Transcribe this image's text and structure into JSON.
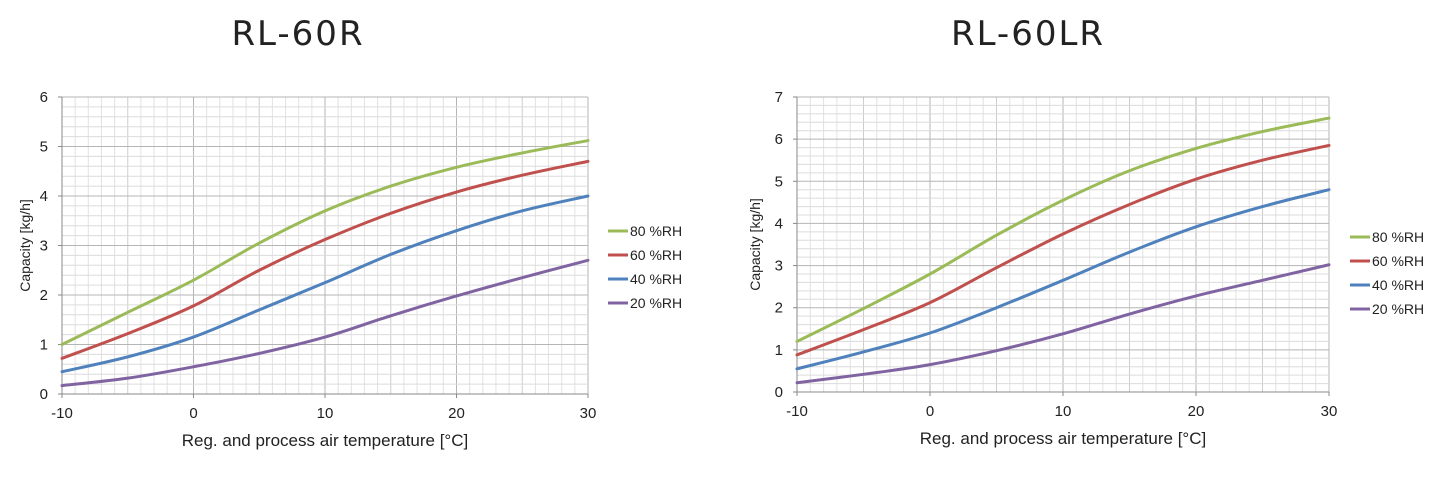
{
  "chart_data": [
    {
      "type": "line",
      "title": "RL-60R",
      "xlabel": "Reg. and process air temperature [°C]",
      "ylabel": "Capacity [kg/h]",
      "xlim": [
        -10,
        30
      ],
      "ylim": [
        0,
        6
      ],
      "xticks": [
        "-10",
        "0",
        "10",
        "20",
        "30"
      ],
      "yticks": [
        "0",
        "1",
        "2",
        "3",
        "4",
        "5",
        "6"
      ],
      "grid": true,
      "legend": "right",
      "series": [
        {
          "name": "80 %RH",
          "color": "#9bbb59",
          "x": [
            -10,
            -5,
            0,
            5,
            10,
            15,
            20,
            25,
            30
          ],
          "y": [
            1.0,
            1.65,
            2.3,
            3.05,
            3.7,
            4.2,
            4.58,
            4.87,
            5.12
          ]
        },
        {
          "name": "60 %RH",
          "color": "#c0504d",
          "x": [
            -10,
            -5,
            0,
            5,
            10,
            15,
            20,
            25,
            30
          ],
          "y": [
            0.72,
            1.22,
            1.78,
            2.5,
            3.12,
            3.65,
            4.08,
            4.42,
            4.7
          ]
        },
        {
          "name": "40 %RH",
          "color": "#4f81bd",
          "x": [
            -10,
            -5,
            0,
            5,
            10,
            15,
            20,
            25,
            30
          ],
          "y": [
            0.45,
            0.75,
            1.15,
            1.7,
            2.25,
            2.82,
            3.3,
            3.7,
            4.0
          ]
        },
        {
          "name": "20 %RH",
          "color": "#8064a2",
          "x": [
            -10,
            -5,
            0,
            5,
            10,
            15,
            20,
            25,
            30
          ],
          "y": [
            0.17,
            0.32,
            0.55,
            0.82,
            1.15,
            1.58,
            1.98,
            2.35,
            2.7
          ]
        }
      ]
    },
    {
      "type": "line",
      "title": "RL-60LR",
      "xlabel": "Reg. and process air temperature [°C]",
      "ylabel": "Capacity [kg/h]",
      "xlim": [
        -10,
        30
      ],
      "ylim": [
        0,
        7
      ],
      "xticks": [
        "-10",
        "0",
        "10",
        "20",
        "30"
      ],
      "yticks": [
        "0",
        "1",
        "2",
        "3",
        "4",
        "5",
        "6",
        "7"
      ],
      "grid": true,
      "legend": "right",
      "series": [
        {
          "name": "80 %RH",
          "color": "#9bbb59",
          "x": [
            -10,
            -5,
            0,
            5,
            10,
            15,
            20,
            25,
            30
          ],
          "y": [
            1.2,
            1.98,
            2.8,
            3.72,
            4.55,
            5.25,
            5.78,
            6.18,
            6.5
          ]
        },
        {
          "name": "60 %RH",
          "color": "#c0504d",
          "x": [
            -10,
            -5,
            0,
            5,
            10,
            15,
            20,
            25,
            30
          ],
          "y": [
            0.88,
            1.48,
            2.12,
            2.95,
            3.75,
            4.45,
            5.05,
            5.5,
            5.85
          ]
        },
        {
          "name": "40 %RH",
          "color": "#4f81bd",
          "x": [
            -10,
            -5,
            0,
            5,
            10,
            15,
            20,
            25,
            30
          ],
          "y": [
            0.55,
            0.95,
            1.4,
            2.0,
            2.65,
            3.32,
            3.92,
            4.4,
            4.8
          ]
        },
        {
          "name": "20 %RH",
          "color": "#8064a2",
          "x": [
            -10,
            -5,
            0,
            5,
            10,
            15,
            20,
            25,
            30
          ],
          "y": [
            0.22,
            0.42,
            0.65,
            0.98,
            1.38,
            1.85,
            2.28,
            2.65,
            3.02
          ]
        }
      ]
    }
  ]
}
